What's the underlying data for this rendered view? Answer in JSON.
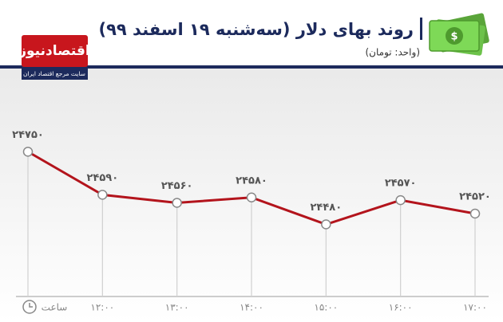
{
  "logo": {
    "name": "اقتصادنیوز",
    "tagline": "سایت مرجع اقتصاد ایران"
  },
  "chart_data": {
    "type": "line",
    "title": "روند بهای دلار (سه‌شنبه ۱۹ اسفند ۹۹)",
    "subtitle": "(واحد: تومان)",
    "x_label": "ساعت",
    "categories": [
      null,
      "۱۲:۰۰",
      "۱۳:۰۰",
      "۱۴:۰۰",
      "۱۵:۰۰",
      "۱۶:۰۰",
      "۱۷:۰۰"
    ],
    "values": [
      24750,
      24590,
      24560,
      24580,
      24480,
      24570,
      24520
    ],
    "value_labels": [
      "۲۴۷۵۰",
      "۲۴۵۹۰",
      "۲۴۵۶۰",
      "۲۴۵۸۰",
      "۲۴۴۸۰",
      "۲۴۵۷۰",
      "۲۴۵۲۰"
    ],
    "color": "#b3141c",
    "ylim": [
      24200,
      25000
    ]
  }
}
